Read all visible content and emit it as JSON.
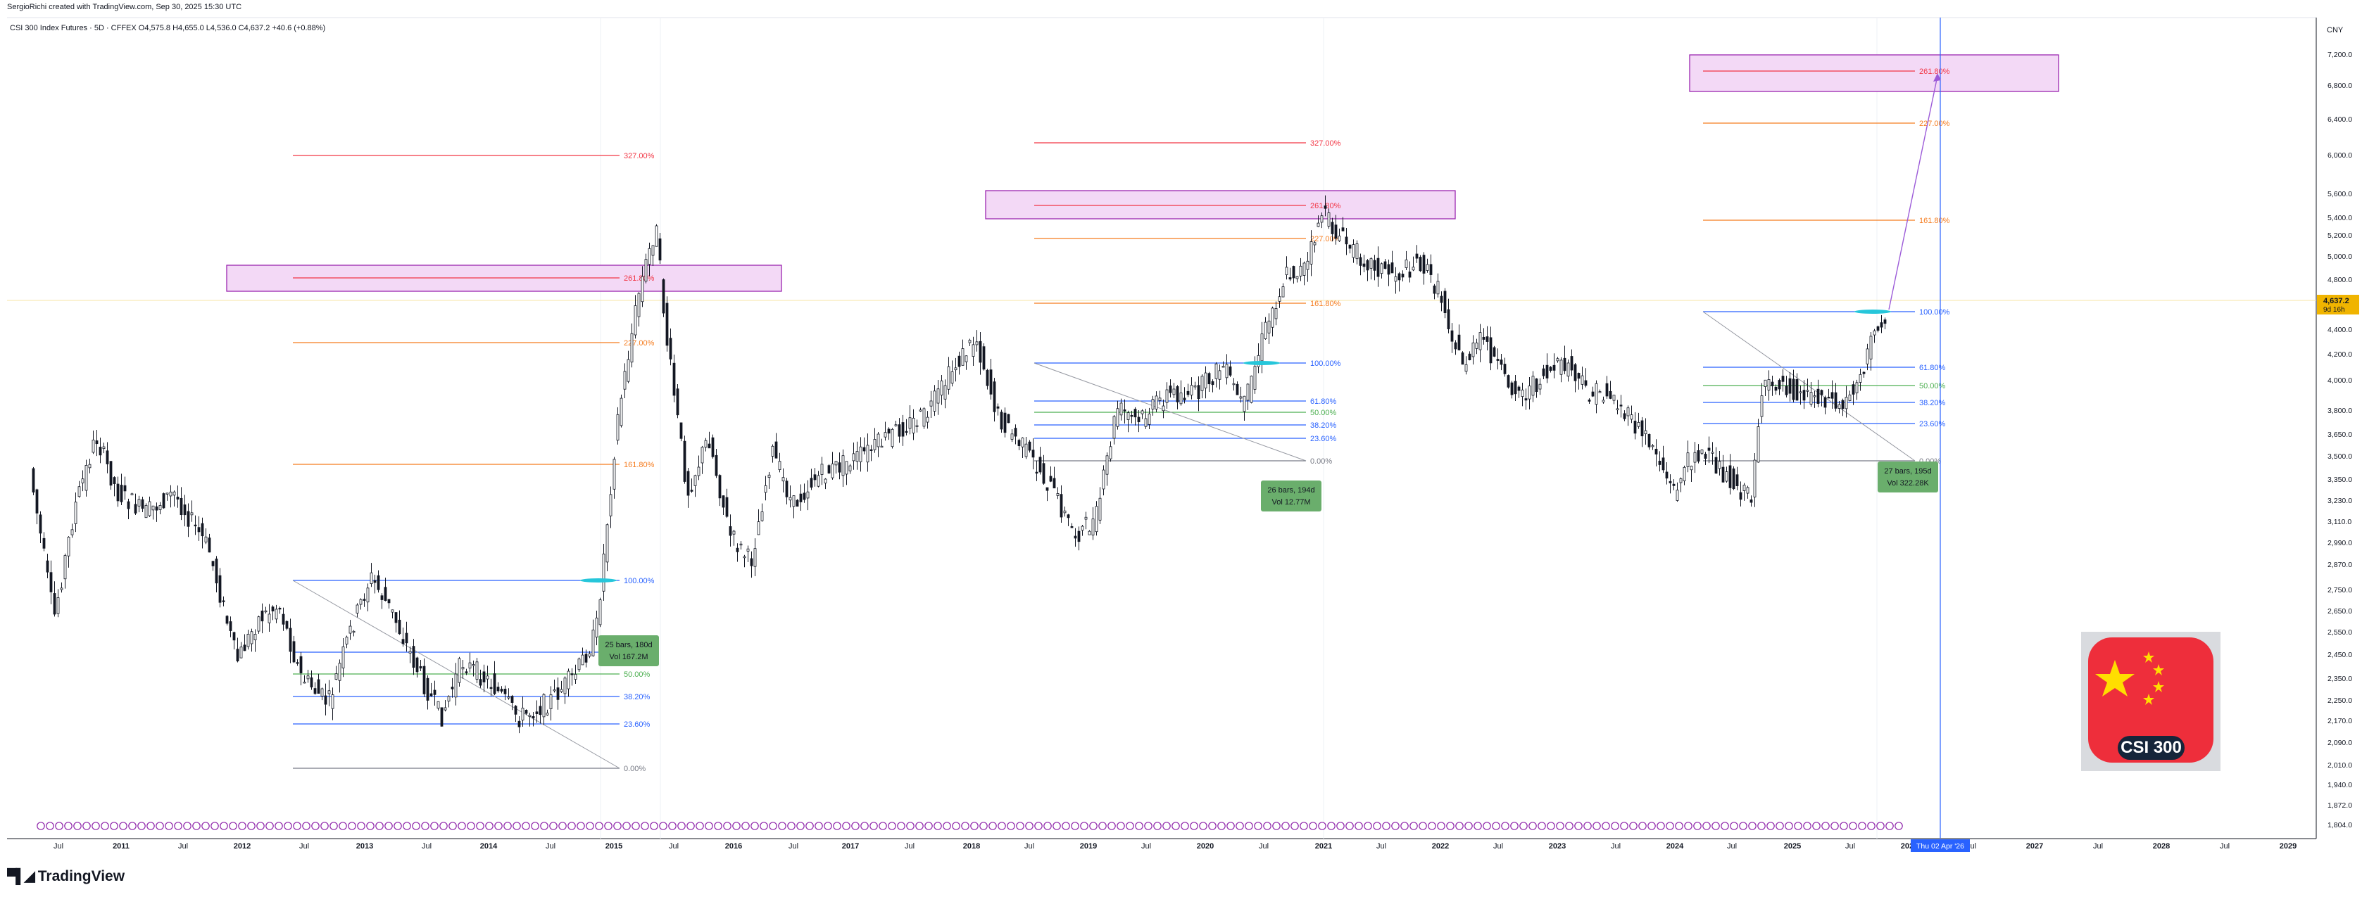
{
  "header": {
    "attribution": "SergioRichi created with TradingView.com, Sep 30, 2025 15:30 UTC",
    "symbol": "CSI 300 Index Futures · 5D · CFFEX",
    "ohlc": "O4,575.8  H4,655.0  L4,536.0  C4,637.2  +40.6 (+0.88%)"
  },
  "price_axis": {
    "currency": "CNY",
    "ticks": [
      "7,200.0",
      "6,800.0",
      "6,400.0",
      "6,000.0",
      "5,600.0",
      "5,400.0",
      "5,200.0",
      "5,000.0",
      "4,800.0",
      "4,400.0",
      "4,200.0",
      "4,000.0",
      "3,800.0",
      "3,650.0",
      "3,500.0",
      "3,350.0",
      "3,230.0",
      "3,110.0",
      "2,990.0",
      "2,870.0",
      "2,750.0",
      "2,650.0",
      "2,550.0",
      "2,450.0",
      "2,350.0",
      "2,250.0",
      "2,170.0",
      "2,090.0",
      "2,010.0",
      "1,940.0",
      "1,872.0",
      "1,804.0"
    ],
    "last_price": "4,637.2",
    "last_price_sub": "9d 16h",
    "last_price_color": "#f0b400"
  },
  "time_axis": {
    "labels": [
      "Jul",
      "2011",
      "Jul",
      "2012",
      "Jul",
      "2013",
      "Jul",
      "2014",
      "Jul",
      "2015",
      "Jul",
      "2016",
      "Jul",
      "2017",
      "Jul",
      "2018",
      "Jul",
      "2019",
      "Jul",
      "2020",
      "Jul",
      "2021",
      "Jul",
      "2022",
      "Jul",
      "2023",
      "Jul",
      "2024",
      "Jul",
      "2025",
      "Jul",
      "2026",
      "Jul",
      "2027",
      "Jul",
      "2028",
      "Jul",
      "2029"
    ],
    "cursor_label": "Thu 02 Apr '26"
  },
  "fib_sets": [
    {
      "levels": [
        "327.00%",
        "261.80%",
        "227.00%",
        "161.80%",
        "100.00%",
        "61.80%",
        "50.00%",
        "38.20%",
        "23.60%",
        "0.00%"
      ]
    },
    {
      "levels": [
        "327.00%",
        "261.80%",
        "227.00%",
        "161.80%",
        "100.00%",
        "61.80%",
        "50.00%",
        "38.20%",
        "23.60%",
        "0.00%"
      ]
    },
    {
      "levels": [
        "261.80%",
        "227.00%",
        "161.80%",
        "100.00%",
        "61.80%",
        "50.00%",
        "38.20%",
        "23.60%",
        "0.00%"
      ]
    }
  ],
  "measure_boxes": [
    {
      "bars": "25 bars, 180d",
      "vol": "Vol 167.2M"
    },
    {
      "bars": "26 bars, 194d",
      "vol": "Vol 12.77M"
    },
    {
      "bars": "27 bars, 195d",
      "vol": "Vol 322.28K"
    }
  ],
  "badge": {
    "label": "CSI 300"
  },
  "footer": {
    "brand": "TradingView"
  },
  "colors": {
    "box_fill": "#f3d9f6",
    "box_stroke": "#9c27b0",
    "fib_red": "#f23645",
    "fib_orange": "#f57c1f",
    "fib_blue": "#2962ff",
    "fib_green": "#4caf50",
    "measure_green": "#6aae6c"
  }
}
